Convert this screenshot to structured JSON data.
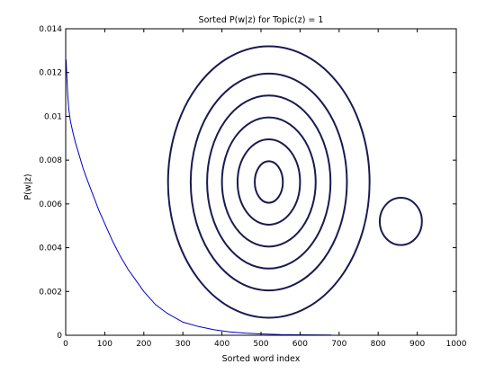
{
  "chart_data": {
    "type": "line",
    "title": "Sorted P(w|z) for Topic(z) = 1",
    "xlabel": "Sorted word index",
    "ylabel": "P(w|z)",
    "xlim": [
      0,
      1000
    ],
    "ylim": [
      0,
      0.014
    ],
    "x_ticks": [
      "0",
      "100",
      "200",
      "300",
      "400",
      "500",
      "600",
      "700",
      "800",
      "900",
      "1000"
    ],
    "y_ticks": [
      "0",
      "0.002",
      "0.004",
      "0.006",
      "0.008",
      "0.01",
      "0.012",
      "0.014"
    ],
    "grid": false,
    "legend": "none",
    "series": [
      {
        "color": "#0000c8",
        "x": [
          1,
          3,
          5,
          8,
          12,
          18,
          25,
          35,
          45,
          55,
          70,
          85,
          100,
          120,
          140,
          160,
          180,
          200,
          230,
          260,
          300,
          340,
          380,
          420,
          460,
          500,
          550,
          600,
          680
        ],
        "values": [
          0.0126,
          0.0118,
          0.011,
          0.0103,
          0.0098,
          0.0093,
          0.0088,
          0.0082,
          0.0076,
          0.0071,
          0.0064,
          0.0057,
          0.0051,
          0.0043,
          0.0036,
          0.003,
          0.0025,
          0.002,
          0.0014,
          0.001,
          0.0006,
          0.0004,
          0.00025,
          0.00015,
          0.0001,
          6e-05,
          3e-05,
          2e-05,
          1e-05
        ]
      }
    ],
    "annotations": {
      "color": "#1a1a50",
      "concentric_circles": {
        "center": [
          520,
          0.007
        ],
        "radius_x": [
          36,
          80,
          120,
          158,
          200,
          258
        ],
        "radius_y": [
          0.00095,
          0.00195,
          0.00295,
          0.00395,
          0.00495,
          0.0062
        ]
      },
      "small_circle": {
        "center": [
          858,
          0.0052
        ],
        "radius_x": 54,
        "radius_y": 0.00108
      }
    }
  }
}
